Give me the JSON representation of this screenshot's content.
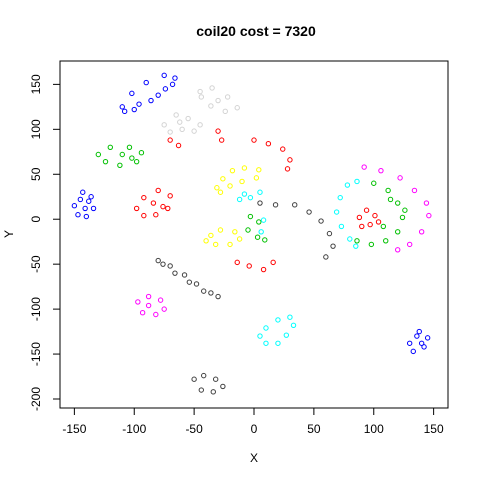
{
  "chart_data": {
    "type": "scatter",
    "title": "coil20  cost = 7320",
    "xlabel": "X",
    "ylabel": "Y",
    "xlim": [
      -162,
      162
    ],
    "ylim": [
      -210,
      176
    ],
    "x_ticks": [
      -150,
      -100,
      -50,
      0,
      50,
      100,
      150
    ],
    "y_ticks": [
      -200,
      -150,
      -100,
      -50,
      0,
      50,
      100,
      150
    ],
    "x_tick_labels": [
      "-150",
      "-100",
      "-50",
      "0",
      "50",
      "100",
      "150"
    ],
    "y_tick_labels": [
      "-200",
      "-150",
      "-100",
      "-50",
      "0",
      "50",
      "100",
      "150"
    ],
    "grid": false,
    "series": [
      {
        "color": "#0000ff",
        "points": [
          [
            -110,
            125
          ],
          [
            -102,
            140
          ],
          [
            -90,
            152
          ],
          [
            -75,
            160
          ],
          [
            -66,
            157
          ],
          [
            -74,
            145
          ],
          [
            -86,
            132
          ],
          [
            -100,
            122
          ],
          [
            -108,
            120
          ],
          [
            -96,
            128
          ],
          [
            -80,
            138
          ],
          [
            -68,
            150
          ],
          [
            138,
            -125
          ],
          [
            145,
            -132
          ],
          [
            142,
            -142
          ],
          [
            133,
            -147
          ],
          [
            130,
            -138
          ],
          [
            136,
            -130
          ],
          [
            140,
            -138
          ],
          [
            -143,
            30
          ],
          [
            -136,
            25
          ],
          [
            -134,
            12
          ],
          [
            -140,
            3
          ],
          [
            -147,
            5
          ],
          [
            -150,
            15
          ],
          [
            -145,
            22
          ],
          [
            -141,
            12
          ],
          [
            -138,
            20
          ]
        ]
      },
      {
        "color": "#d3d3d3",
        "points": [
          [
            -45,
            142
          ],
          [
            -35,
            146
          ],
          [
            -22,
            136
          ],
          [
            -14,
            124
          ],
          [
            -24,
            120
          ],
          [
            -36,
            126
          ],
          [
            -44,
            136
          ],
          [
            -30,
            132
          ],
          [
            -75,
            105
          ],
          [
            -65,
            116
          ],
          [
            -55,
            112
          ],
          [
            -60,
            100
          ],
          [
            -70,
            97
          ],
          [
            -45,
            105
          ],
          [
            -62,
            108
          ],
          [
            -50,
            98
          ]
        ]
      },
      {
        "color": "#00c000",
        "points": [
          [
            -130,
            72
          ],
          [
            -120,
            80
          ],
          [
            -104,
            80
          ],
          [
            -94,
            74
          ],
          [
            -98,
            64
          ],
          [
            -112,
            60
          ],
          [
            -124,
            64
          ],
          [
            -110,
            72
          ],
          [
            -102,
            68
          ],
          [
            100,
            40
          ],
          [
            112,
            32
          ],
          [
            120,
            18
          ],
          [
            124,
            2
          ],
          [
            120,
            -14
          ],
          [
            110,
            -24
          ],
          [
            98,
            -28
          ],
          [
            86,
            -24
          ],
          [
            126,
            10
          ],
          [
            108,
            -8
          ],
          [
            114,
            22
          ],
          [
            -3,
            3
          ],
          [
            4,
            -3
          ],
          [
            -5,
            -12
          ],
          [
            3,
            -20
          ],
          [
            9,
            -23
          ]
        ]
      },
      {
        "color": "#ff0000",
        "points": [
          [
            -98,
            12
          ],
          [
            -92,
            24
          ],
          [
            -80,
            32
          ],
          [
            -70,
            26
          ],
          [
            -72,
            12
          ],
          [
            -82,
            5
          ],
          [
            -92,
            4
          ],
          [
            -84,
            18
          ],
          [
            -76,
            14
          ],
          [
            -70,
            88
          ],
          [
            -63,
            82
          ],
          [
            -30,
            98
          ],
          [
            -27,
            88
          ],
          [
            0,
            88
          ],
          [
            12,
            84
          ],
          [
            24,
            78
          ],
          [
            30,
            66
          ],
          [
            28,
            56
          ],
          [
            -14,
            -48
          ],
          [
            -4,
            -52
          ],
          [
            8,
            -56
          ],
          [
            16,
            -48
          ],
          [
            88,
            2
          ],
          [
            94,
            10
          ],
          [
            101,
            4
          ],
          [
            97,
            -6
          ],
          [
            90,
            -8
          ],
          [
            104,
            -3
          ]
        ]
      },
      {
        "color": "#ffff00",
        "points": [
          [
            -31,
            35
          ],
          [
            -26,
            45
          ],
          [
            -18,
            54
          ],
          [
            -8,
            57
          ],
          [
            4,
            55
          ],
          [
            2,
            46
          ],
          [
            -10,
            42
          ],
          [
            -20,
            37
          ],
          [
            -28,
            30
          ],
          [
            -36,
            -18
          ],
          [
            -28,
            -12
          ],
          [
            -16,
            -14
          ],
          [
            -12,
            -22
          ],
          [
            -20,
            -28
          ],
          [
            -32,
            -28
          ],
          [
            -40,
            -24
          ]
        ]
      },
      {
        "color": "#00ffff",
        "points": [
          [
            -12,
            22
          ],
          [
            -8,
            28
          ],
          [
            -3,
            24
          ],
          [
            5,
            30
          ],
          [
            6,
            -14
          ],
          [
            8,
            -1
          ],
          [
            78,
            38
          ],
          [
            72,
            24
          ],
          [
            69,
            8
          ],
          [
            73,
            -8
          ],
          [
            80,
            -22
          ],
          [
            85,
            -30
          ],
          [
            86,
            42
          ],
          [
            5,
            -130
          ],
          [
            10,
            -121
          ],
          [
            20,
            -112
          ],
          [
            30,
            -109
          ],
          [
            33,
            -118
          ],
          [
            27,
            -129
          ],
          [
            20,
            -138
          ],
          [
            10,
            -138
          ]
        ]
      },
      {
        "color": "#404040",
        "points": [
          [
            -80,
            -46
          ],
          [
            -70,
            -52
          ],
          [
            -58,
            -62
          ],
          [
            -48,
            -72
          ],
          [
            -36,
            -82
          ],
          [
            -30,
            -86
          ],
          [
            -42,
            -80
          ],
          [
            -54,
            -70
          ],
          [
            -66,
            -60
          ],
          [
            -76,
            -50
          ],
          [
            5,
            18
          ],
          [
            18,
            16
          ],
          [
            34,
            16
          ],
          [
            46,
            8
          ],
          [
            56,
            -2
          ],
          [
            63,
            -16
          ],
          [
            66,
            -30
          ],
          [
            60,
            -42
          ],
          [
            -50,
            -178
          ],
          [
            -42,
            -174
          ],
          [
            -32,
            -178
          ],
          [
            -26,
            -186
          ],
          [
            -34,
            -192
          ],
          [
            -44,
            -190
          ]
        ]
      },
      {
        "color": "#ff00ff",
        "points": [
          [
            -97,
            -92
          ],
          [
            -88,
            -86
          ],
          [
            -78,
            -90
          ],
          [
            -75,
            -100
          ],
          [
            -82,
            -106
          ],
          [
            -93,
            -104
          ],
          [
            -88,
            -96
          ],
          [
            92,
            58
          ],
          [
            106,
            54
          ],
          [
            122,
            46
          ],
          [
            134,
            32
          ],
          [
            144,
            18
          ],
          [
            146,
            4
          ],
          [
            140,
            -14
          ],
          [
            130,
            -28
          ],
          [
            120,
            -34
          ]
        ]
      }
    ]
  }
}
